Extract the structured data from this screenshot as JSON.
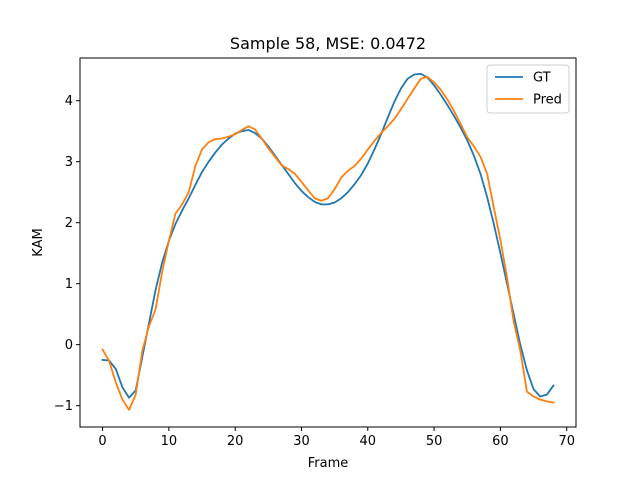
{
  "chart_data": {
    "type": "line",
    "title": "Sample 58, MSE: 0.0472",
    "xlabel": "Frame",
    "ylabel": "KAM",
    "xlim": [
      -3.4,
      71.4
    ],
    "ylim": [
      -1.35,
      4.7
    ],
    "xticks": [
      0,
      10,
      20,
      30,
      40,
      50,
      60,
      70
    ],
    "yticks": [
      -1,
      0,
      1,
      2,
      3,
      4
    ],
    "grid": false,
    "legend_position": "top-right",
    "series": [
      {
        "name": "GT",
        "color": "#1f77b4",
        "x": [
          0,
          1,
          2,
          3,
          4,
          5,
          6,
          7,
          8,
          9,
          10,
          11,
          12,
          13,
          14,
          15,
          16,
          17,
          18,
          19,
          20,
          21,
          22,
          23,
          24,
          25,
          26,
          27,
          28,
          29,
          30,
          31,
          32,
          33,
          34,
          35,
          36,
          37,
          38,
          39,
          40,
          41,
          42,
          43,
          44,
          45,
          46,
          47,
          48,
          49,
          50,
          51,
          52,
          53,
          54,
          55,
          56,
          57,
          58,
          59,
          60,
          61,
          62,
          63,
          64,
          65,
          66,
          67,
          68
        ],
        "y": [
          -0.25,
          -0.26,
          -0.4,
          -0.7,
          -0.87,
          -0.75,
          -0.2,
          0.35,
          0.9,
          1.35,
          1.7,
          1.98,
          2.2,
          2.4,
          2.62,
          2.83,
          3.0,
          3.15,
          3.28,
          3.38,
          3.46,
          3.5,
          3.52,
          3.47,
          3.38,
          3.25,
          3.1,
          2.95,
          2.8,
          2.65,
          2.52,
          2.42,
          2.34,
          2.3,
          2.3,
          2.33,
          2.4,
          2.5,
          2.63,
          2.78,
          2.97,
          3.2,
          3.45,
          3.72,
          3.98,
          4.2,
          4.36,
          4.43,
          4.44,
          4.38,
          4.25,
          4.1,
          3.93,
          3.75,
          3.56,
          3.35,
          3.1,
          2.8,
          2.42,
          1.98,
          1.5,
          1.0,
          0.5,
          0.0,
          -0.42,
          -0.73,
          -0.85,
          -0.82,
          -0.67
        ]
      },
      {
        "name": "Pred",
        "color": "#ff7f0e",
        "x": [
          0,
          1,
          2,
          3,
          4,
          5,
          6,
          7,
          8,
          9,
          10,
          11,
          12,
          13,
          14,
          15,
          16,
          17,
          18,
          19,
          20,
          21,
          22,
          23,
          24,
          25,
          26,
          27,
          28,
          29,
          30,
          31,
          32,
          33,
          34,
          35,
          36,
          37,
          38,
          39,
          40,
          41,
          42,
          43,
          44,
          45,
          46,
          47,
          48,
          49,
          50,
          51,
          52,
          53,
          54,
          55,
          56,
          57,
          58,
          59,
          60,
          61,
          62,
          63,
          64,
          65,
          66,
          67,
          68
        ],
        "y": [
          -0.08,
          -0.27,
          -0.62,
          -0.9,
          -1.07,
          -0.82,
          -0.1,
          0.3,
          0.58,
          1.2,
          1.7,
          2.15,
          2.3,
          2.5,
          2.93,
          3.2,
          3.32,
          3.37,
          3.38,
          3.41,
          3.45,
          3.52,
          3.58,
          3.53,
          3.38,
          3.22,
          3.08,
          2.94,
          2.88,
          2.8,
          2.67,
          2.53,
          2.4,
          2.36,
          2.4,
          2.55,
          2.74,
          2.85,
          2.93,
          3.05,
          3.2,
          3.34,
          3.47,
          3.58,
          3.7,
          3.86,
          4.03,
          4.2,
          4.36,
          4.39,
          4.3,
          4.18,
          4.02,
          3.83,
          3.62,
          3.4,
          3.25,
          3.08,
          2.8,
          2.25,
          1.72,
          1.1,
          0.38,
          -0.1,
          -0.77,
          -0.85,
          -0.9,
          -0.93,
          -0.95
        ]
      }
    ]
  }
}
